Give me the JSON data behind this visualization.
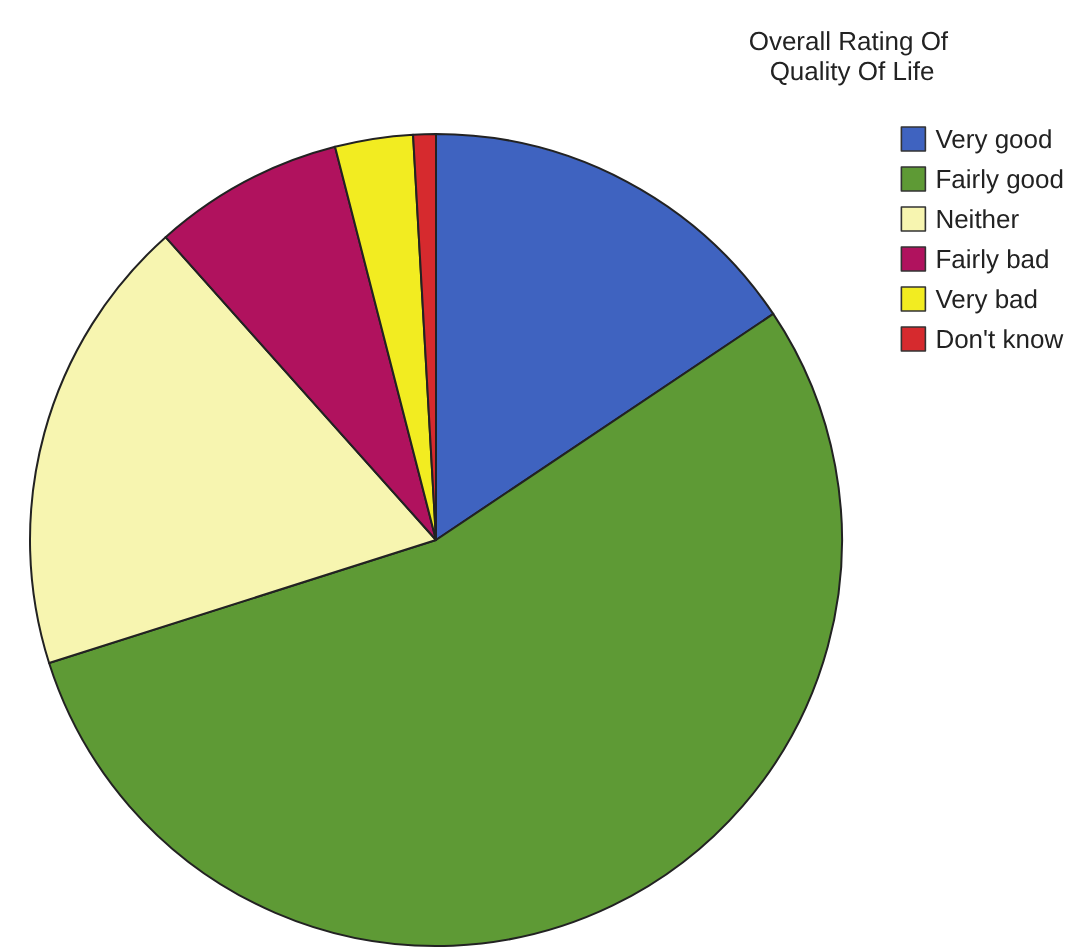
{
  "chart_data": {
    "type": "pie",
    "legend_title": "Overall Rating Of Quality Of Life",
    "legend": "top right",
    "categories": [
      "Very good",
      "Fairly good",
      "Neither",
      "Fairly bad",
      "Very bad",
      "Don't know"
    ],
    "values": [
      15.6,
      54.5,
      18.3,
      7.6,
      3.1,
      0.9
    ],
    "colors": [
      "#3f63c0",
      "#5e9a35",
      "#f7f5b0",
      "#b0125e",
      "#f2ec21",
      "#d62a2e"
    ]
  }
}
